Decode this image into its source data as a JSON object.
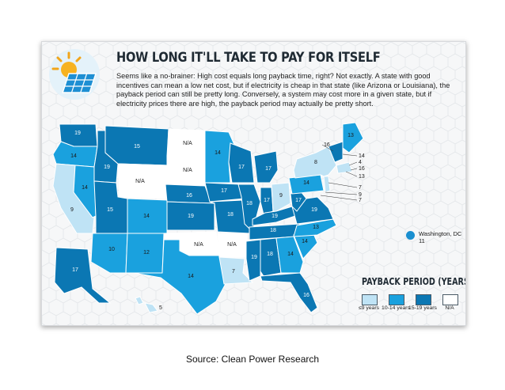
{
  "title": "HOW LONG IT'LL TAKE TO PAY FOR ITSELF",
  "description": "Seems like a no-brainer: High cost equals long payback time, right? Not exactly. A state with good incentives can mean a low net cost, but if electricity is cheap in that state (like Arizona or Louisiana), the payback period can still be pretty long. Conversely, a system may cost more in a given state, but if electricity prices there are high, the payback period may actually be pretty short.",
  "colors": {
    "lt9": "#bfe3f5",
    "10to14": "#1aa1de",
    "15to19": "#0b77b3",
    "na": "#ffffff",
    "dc": "#1a8fd0"
  },
  "legend": {
    "title": "PAYBACK PERIOD (YEARS)",
    "items": [
      {
        "label": "≤9 years",
        "color_key": "lt9"
      },
      {
        "label": "10-14 years",
        "color_key": "10to14"
      },
      {
        "label": "15-19 years",
        "color_key": "15to19"
      },
      {
        "label": "N/A",
        "color_key": "na"
      }
    ]
  },
  "dc": {
    "name": "Washington, DC",
    "value": "11"
  },
  "states": [
    {
      "id": "WA",
      "label": "19",
      "bucket": "15to19"
    },
    {
      "id": "OR",
      "label": "14",
      "bucket": "10to14"
    },
    {
      "id": "CA",
      "label": "9",
      "bucket": "lt9"
    },
    {
      "id": "NV",
      "label": "14",
      "bucket": "10to14"
    },
    {
      "id": "ID",
      "label": "19",
      "bucket": "15to19"
    },
    {
      "id": "MT",
      "label": "15",
      "bucket": "15to19"
    },
    {
      "id": "WY",
      "label": "N/A",
      "bucket": "na"
    },
    {
      "id": "UT",
      "label": "15",
      "bucket": "15to19"
    },
    {
      "id": "AZ",
      "label": "10",
      "bucket": "10to14"
    },
    {
      "id": "CO",
      "label": "14",
      "bucket": "10to14"
    },
    {
      "id": "NM",
      "label": "12",
      "bucket": "10to14"
    },
    {
      "id": "ND",
      "label": "N/A",
      "bucket": "na"
    },
    {
      "id": "SD",
      "label": "N/A",
      "bucket": "na"
    },
    {
      "id": "NE",
      "label": "16",
      "bucket": "15to19"
    },
    {
      "id": "KS",
      "label": "19",
      "bucket": "15to19"
    },
    {
      "id": "OK",
      "label": "N/A",
      "bucket": "na"
    },
    {
      "id": "TX",
      "label": "14",
      "bucket": "10to14"
    },
    {
      "id": "MN",
      "label": "14",
      "bucket": "10to14"
    },
    {
      "id": "IA",
      "label": "17",
      "bucket": "15to19"
    },
    {
      "id": "MO",
      "label": "18",
      "bucket": "15to19"
    },
    {
      "id": "AR",
      "label": "N/A",
      "bucket": "na"
    },
    {
      "id": "LA",
      "label": "7",
      "bucket": "lt9"
    },
    {
      "id": "WI",
      "label": "17",
      "bucket": "15to19"
    },
    {
      "id": "IL",
      "label": "18",
      "bucket": "15to19"
    },
    {
      "id": "MI",
      "label": "17",
      "bucket": "15to19"
    },
    {
      "id": "IN",
      "label": "17",
      "bucket": "15to19"
    },
    {
      "id": "OH",
      "label": "9",
      "bucket": "lt9"
    },
    {
      "id": "KY",
      "label": "19",
      "bucket": "15to19"
    },
    {
      "id": "TN",
      "label": "18",
      "bucket": "15to19"
    },
    {
      "id": "MS",
      "label": "19",
      "bucket": "15to19"
    },
    {
      "id": "AL",
      "label": "18",
      "bucket": "15to19"
    },
    {
      "id": "GA",
      "label": "14",
      "bucket": "10to14"
    },
    {
      "id": "FL",
      "label": "16",
      "bucket": "15to19"
    },
    {
      "id": "SC",
      "label": "14",
      "bucket": "10to14"
    },
    {
      "id": "NC",
      "label": "13",
      "bucket": "10to14"
    },
    {
      "id": "VA",
      "label": "19",
      "bucket": "15to19"
    },
    {
      "id": "WV",
      "label": "17",
      "bucket": "15to19"
    },
    {
      "id": "PA",
      "label": "14",
      "bucket": "10to14"
    },
    {
      "id": "NY",
      "label": "8",
      "bucket": "lt9"
    },
    {
      "id": "ME",
      "label": "13",
      "bucket": "10to14"
    },
    {
      "id": "AK",
      "label": "17",
      "bucket": "15to19"
    },
    {
      "id": "HI",
      "label": "5",
      "bucket": "lt9"
    }
  ],
  "northeast_callouts": [
    {
      "state": "VT",
      "label": "16",
      "bucket": "15to19"
    },
    {
      "state": "NH",
      "label": "14",
      "bucket": "10to14"
    },
    {
      "state": "MA",
      "label": "4",
      "bucket": "lt9"
    },
    {
      "state": "RI",
      "label": "16",
      "bucket": "15to19"
    },
    {
      "state": "CT",
      "label": "13",
      "bucket": "10to14"
    },
    {
      "state": "NJ",
      "label": "7",
      "bucket": "lt9"
    },
    {
      "state": "DE",
      "label": "9",
      "bucket": "lt9"
    },
    {
      "state": "MD",
      "label": "7",
      "bucket": "lt9"
    }
  ],
  "source": "Source: Clean Power Research"
}
